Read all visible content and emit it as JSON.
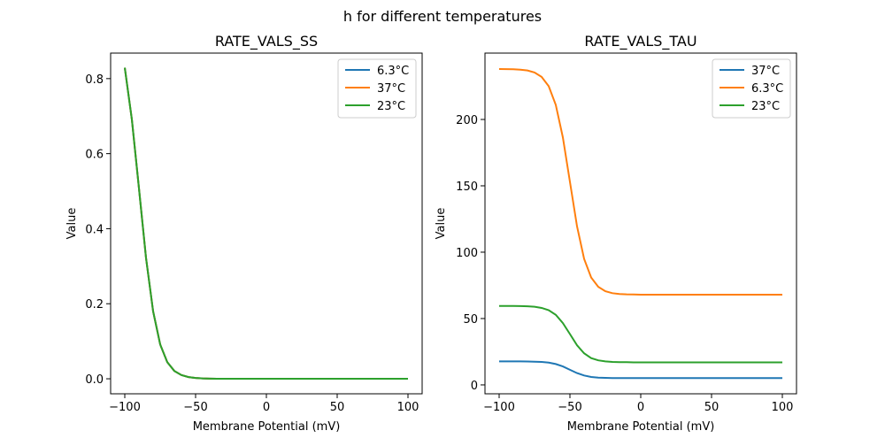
{
  "suptitle": "h for different temperatures",
  "chart_data": [
    {
      "type": "line",
      "title": "RATE_VALS_SS",
      "xlabel": "Membrane Potential (mV)",
      "ylabel": "Value",
      "xlim": [
        -110,
        110
      ],
      "ylim": [
        -0.04,
        0.868
      ],
      "xticks": [
        -100,
        -50,
        0,
        50,
        100
      ],
      "xtick_labels": [
        "−100",
        "−50",
        "0",
        "50",
        "100"
      ],
      "yticks": [
        0,
        0.2,
        0.4,
        0.6,
        0.8
      ],
      "ytick_labels": [
        "0.0",
        "0.2",
        "0.4",
        "0.6",
        "0.8"
      ],
      "legend_placement": "top-right",
      "grid": false,
      "x": [
        -100,
        -95,
        -90,
        -85,
        -80,
        -75,
        -70,
        -65,
        -60,
        -55,
        -50,
        -45,
        -40,
        -35,
        -30,
        -25,
        -20,
        -15,
        -10,
        -5,
        0,
        5,
        10,
        15,
        20,
        25,
        30,
        35,
        40,
        45,
        50,
        55,
        60,
        65,
        70,
        75,
        80,
        85,
        90,
        95,
        100
      ],
      "series": [
        {
          "name": "6.3°C",
          "color": "#1f77b4",
          "values": [
            0.829,
            0.691,
            0.508,
            0.322,
            0.18,
            0.0916,
            0.0444,
            0.0209,
            0.0098,
            0.0045,
            0.0021,
            0.001,
            0.0004,
            0.0002,
            0.0001,
            0,
            0,
            0,
            0,
            0,
            0,
            0,
            0,
            0,
            0,
            0,
            0,
            0,
            0,
            0,
            0,
            0,
            0,
            0,
            0,
            0,
            0,
            0,
            0,
            0,
            0
          ]
        },
        {
          "name": "37°C",
          "color": "#ff7f0e",
          "values": [
            0.829,
            0.691,
            0.508,
            0.322,
            0.18,
            0.0916,
            0.0444,
            0.0209,
            0.0098,
            0.0045,
            0.0021,
            0.001,
            0.0004,
            0.0002,
            0.0001,
            0,
            0,
            0,
            0,
            0,
            0,
            0,
            0,
            0,
            0,
            0,
            0,
            0,
            0,
            0,
            0,
            0,
            0,
            0,
            0,
            0,
            0,
            0,
            0,
            0,
            0
          ]
        },
        {
          "name": "23°C",
          "color": "#2ca02c",
          "values": [
            0.829,
            0.691,
            0.508,
            0.322,
            0.18,
            0.0916,
            0.0444,
            0.0209,
            0.0098,
            0.0045,
            0.0021,
            0.001,
            0.0004,
            0.0002,
            0.0001,
            0,
            0,
            0,
            0,
            0,
            0,
            0,
            0,
            0,
            0,
            0,
            0,
            0,
            0,
            0,
            0,
            0,
            0,
            0,
            0,
            0,
            0,
            0,
            0,
            0,
            0
          ]
        }
      ]
    },
    {
      "type": "line",
      "title": "RATE_VALS_TAU",
      "xlabel": "Membrane Potential (mV)",
      "ylabel": "Value",
      "xlim": [
        -110,
        110
      ],
      "ylim": [
        -6.7,
        250
      ],
      "xticks": [
        -100,
        -50,
        0,
        50,
        100
      ],
      "xtick_labels": [
        "−100",
        "−50",
        "0",
        "50",
        "100"
      ],
      "yticks": [
        0,
        50,
        100,
        150,
        200
      ],
      "ytick_labels": [
        "0",
        "50",
        "100",
        "150",
        "200"
      ],
      "legend_placement": "top-right",
      "grid": false,
      "x": [
        -100,
        -95,
        -90,
        -85,
        -80,
        -75,
        -70,
        -65,
        -60,
        -55,
        -50,
        -45,
        -40,
        -35,
        -30,
        -25,
        -20,
        -15,
        -10,
        -5,
        0,
        5,
        10,
        15,
        20,
        25,
        30,
        35,
        40,
        45,
        50,
        55,
        60,
        65,
        70,
        75,
        80,
        85,
        90,
        95,
        100
      ],
      "series": [
        {
          "name": "37°C",
          "color": "#1f77b4",
          "values": [
            17.7,
            17.7,
            17.7,
            17.7,
            17.6,
            17.5,
            17.3,
            16.8,
            15.7,
            13.9,
            11.4,
            8.9,
            7.1,
            6.0,
            5.5,
            5.3,
            5.1,
            5.1,
            5.1,
            5.1,
            5.1,
            5.1,
            5.1,
            5.1,
            5.1,
            5.1,
            5.1,
            5.1,
            5.1,
            5.1,
            5.1,
            5.1,
            5.1,
            5.1,
            5.1,
            5.1,
            5.1,
            5.1,
            5.1,
            5.1,
            5.1
          ]
        },
        {
          "name": "6.3°C",
          "color": "#ff7f0e",
          "values": [
            238.0,
            237.9,
            237.8,
            237.5,
            236.9,
            235.4,
            232.1,
            225.1,
            211.0,
            186.5,
            153.0,
            119.5,
            95.0,
            80.9,
            73.9,
            70.6,
            69.1,
            68.5,
            68.2,
            68.1,
            68.0,
            68.0,
            68.0,
            68.0,
            68.0,
            68.0,
            68.0,
            68.0,
            68.0,
            68.0,
            68.0,
            68.0,
            68.0,
            68.0,
            68.0,
            68.0,
            68.0,
            68.0,
            68.0,
            68.0,
            68.0
          ]
        },
        {
          "name": "23°C",
          "color": "#2ca02c",
          "values": [
            59.5,
            59.5,
            59.5,
            59.4,
            59.2,
            58.9,
            58.0,
            56.3,
            52.8,
            46.6,
            38.3,
            29.9,
            23.8,
            20.2,
            18.5,
            17.7,
            17.3,
            17.1,
            17.1,
            17.0,
            17.0,
            17.0,
            17.0,
            17.0,
            17.0,
            17.0,
            17.0,
            17.0,
            17.0,
            17.0,
            17.0,
            17.0,
            17.0,
            17.0,
            17.0,
            17.0,
            17.0,
            17.0,
            17.0,
            17.0,
            17.0
          ]
        }
      ]
    }
  ]
}
